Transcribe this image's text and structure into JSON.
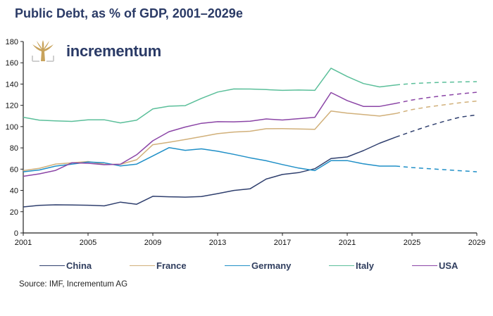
{
  "title": "Public Debt, as % of GDP, 2001–2029e",
  "logo": {
    "icon": "tree-icon",
    "text": "incrementum"
  },
  "source": "Source: IMF, Incrementum AG",
  "chart_data": {
    "type": "line",
    "title": "Public Debt, as % of GDP, 2001–2029e",
    "xlabel": "",
    "ylabel": "",
    "x": [
      2001,
      2002,
      2003,
      2004,
      2005,
      2006,
      2007,
      2008,
      2009,
      2010,
      2011,
      2012,
      2013,
      2014,
      2015,
      2016,
      2017,
      2018,
      2019,
      2020,
      2021,
      2022,
      2023,
      2024,
      2025,
      2026,
      2027,
      2028,
      2029
    ],
    "xticks": [
      "2001",
      "2005",
      "2009",
      "2013",
      "2017",
      "2021",
      "2025",
      "2029"
    ],
    "xlim": [
      2001,
      2029
    ],
    "ylim": [
      0,
      180
    ],
    "yticks": [
      "0",
      "20",
      "40",
      "60",
      "80",
      "100",
      "120",
      "140",
      "160",
      "180"
    ],
    "forecast_from": 2024,
    "grid": false,
    "legend_position": "bottom",
    "series": [
      {
        "name": "China",
        "color": "#2f3f6e",
        "values": [
          24.5,
          26,
          26.5,
          26.3,
          26.1,
          25.5,
          29,
          27,
          34.5,
          34,
          33.7,
          34.3,
          37,
          40,
          41.5,
          50.7,
          55,
          56.7,
          60.4,
          70,
          71.5,
          77.4,
          84.4,
          90.1,
          95.5,
          100.5,
          105,
          109,
          111
        ]
      },
      {
        "name": "France",
        "color": "#d1b07a",
        "values": [
          58.6,
          60.8,
          64.8,
          65.9,
          67.2,
          64.6,
          64.5,
          68.8,
          83,
          85.3,
          87.8,
          90.6,
          93.4,
          94.9,
          95.6,
          98,
          98.1,
          97.8,
          97.4,
          114.7,
          112.6,
          111.4,
          109.9,
          112.3,
          116,
          118.5,
          120.5,
          122.5,
          124
        ]
      },
      {
        "name": "Germany",
        "color": "#1f8fc7",
        "values": [
          57.5,
          59.2,
          62.9,
          64.7,
          66.7,
          66.0,
          63.0,
          64.7,
          72.4,
          80.2,
          77.7,
          79.1,
          76.8,
          73.9,
          70.7,
          67.9,
          64.3,
          61.0,
          58.6,
          68.0,
          68.0,
          65.0,
          62.9,
          62.9,
          61.5,
          60.5,
          59.5,
          58.5,
          57.5
        ]
      },
      {
        "name": "Italy",
        "color": "#5bbf9a",
        "values": [
          108.8,
          106.1,
          105.4,
          104.9,
          106.4,
          106.4,
          103.5,
          106.1,
          116.6,
          119.2,
          119.7,
          126.5,
          132.5,
          135.4,
          135.3,
          134.8,
          134.1,
          134.4,
          134.1,
          154.9,
          147.1,
          140.5,
          137.3,
          139.2,
          140.5,
          141.2,
          141.7,
          142,
          142.3
        ]
      },
      {
        "name": "USA",
        "color": "#8b45a6",
        "values": [
          53.3,
          55.6,
          58.8,
          66,
          65.5,
          64.2,
          64.6,
          73.5,
          86.7,
          95.2,
          99.6,
          103.1,
          104.6,
          104.5,
          105.1,
          107.2,
          106.2,
          107.5,
          108.7,
          132,
          124.5,
          119,
          119,
          121.8,
          125,
          127.3,
          129.2,
          130.8,
          132.3
        ]
      }
    ]
  }
}
